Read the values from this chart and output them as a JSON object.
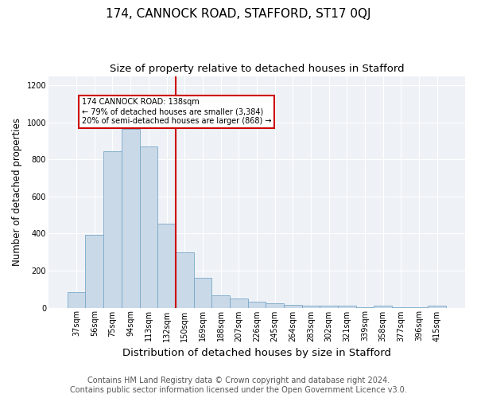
{
  "title": "174, CANNOCK ROAD, STAFFORD, ST17 0QJ",
  "subtitle": "Size of property relative to detached houses in Stafford",
  "xlabel": "Distribution of detached houses by size in Stafford",
  "ylabel": "Number of detached properties",
  "categories": [
    "37sqm",
    "56sqm",
    "75sqm",
    "94sqm",
    "113sqm",
    "132sqm",
    "150sqm",
    "169sqm",
    "188sqm",
    "207sqm",
    "226sqm",
    "245sqm",
    "264sqm",
    "283sqm",
    "302sqm",
    "321sqm",
    "339sqm",
    "358sqm",
    "377sqm",
    "396sqm",
    "415sqm"
  ],
  "values": [
    82,
    392,
    843,
    963,
    872,
    452,
    298,
    160,
    65,
    50,
    32,
    22,
    14,
    11,
    10,
    9,
    2,
    10,
    2,
    2,
    10
  ],
  "bar_color": "#c9d9e8",
  "bar_edge_color": "#7aa8c8",
  "bar_width": 1.0,
  "annotation_text_line1": "174 CANNOCK ROAD: 138sqm",
  "annotation_text_line2": "← 79% of detached houses are smaller (3,384)",
  "annotation_text_line3": "20% of semi-detached houses are larger (868) →",
  "annotation_box_color": "#ffffff",
  "annotation_box_edge_color": "#cc0000",
  "vline_color": "#cc0000",
  "vline_x": 5.5,
  "ylim": [
    0,
    1250
  ],
  "yticks": [
    0,
    200,
    400,
    600,
    800,
    1000,
    1200
  ],
  "background_color": "#eef2f7",
  "footer_line1": "Contains HM Land Registry data © Crown copyright and database right 2024.",
  "footer_line2": "Contains public sector information licensed under the Open Government Licence v3.0.",
  "title_fontsize": 11,
  "subtitle_fontsize": 9.5,
  "xlabel_fontsize": 9.5,
  "ylabel_fontsize": 8.5,
  "tick_fontsize": 7,
  "footer_fontsize": 7
}
